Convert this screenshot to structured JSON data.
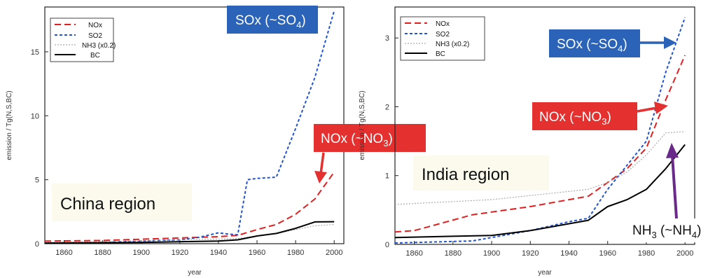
{
  "chart_data": [
    {
      "type": "line",
      "panel": "left",
      "region_label": "China region",
      "xlabel": "year",
      "ylabel": "emission / Tg(N,S,BC)",
      "xlim": [
        1850,
        2005
      ],
      "ylim": [
        0,
        18.5
      ],
      "xticks": [
        1860,
        1880,
        1900,
        1920,
        1940,
        1960,
        1980,
        2000
      ],
      "yticks": [
        0,
        5,
        10,
        15
      ],
      "legend_position": "top-left",
      "series": [
        {
          "name": "NOx",
          "color": "#e02020",
          "dash": "9,5",
          "width": 2,
          "x": [
            1850,
            1880,
            1900,
            1920,
            1940,
            1950,
            1960,
            1970,
            1980,
            1990,
            2000
          ],
          "y": [
            0.2,
            0.25,
            0.35,
            0.45,
            0.55,
            0.65,
            1.1,
            1.5,
            2.3,
            3.5,
            5.6
          ]
        },
        {
          "name": "SO2",
          "color": "#2255cc",
          "dash": "4,3",
          "width": 2,
          "x": [
            1850,
            1880,
            1900,
            1920,
            1930,
            1940,
            1945,
            1950,
            1955,
            1960,
            1970,
            1980,
            1990,
            2000
          ],
          "y": [
            0.05,
            0.1,
            0.2,
            0.3,
            0.5,
            0.85,
            0.75,
            0.7,
            5.0,
            5.1,
            5.2,
            9.0,
            13.0,
            18.2
          ]
        },
        {
          "name": "NH3 (x0.2)",
          "color": "#aaaaaa",
          "dash": "2,2",
          "width": 1.2,
          "x": [
            1850,
            1900,
            1950,
            1960,
            1970,
            1980,
            1990,
            2000
          ],
          "y": [
            0.1,
            0.2,
            0.4,
            0.6,
            0.8,
            1.1,
            1.4,
            1.5
          ]
        },
        {
          "name": "BC",
          "color": "#000000",
          "dash": "",
          "width": 2,
          "x": [
            1850,
            1900,
            1940,
            1950,
            1960,
            1970,
            1980,
            1990,
            2000
          ],
          "y": [
            0.05,
            0.1,
            0.2,
            0.3,
            0.6,
            0.8,
            1.2,
            1.7,
            1.72
          ]
        }
      ],
      "annotations": [
        {
          "label": "SOx (~SO",
          "sub": "4",
          "close": ")",
          "box_color": "#2a63b8"
        },
        {
          "label": "NOx (~NO",
          "sub": "3",
          "close": ")",
          "box_color": "#e53030"
        }
      ]
    },
    {
      "type": "line",
      "panel": "right",
      "region_label": "India region",
      "xlabel": "year",
      "ylabel": "emission / Tg(N,S,BC)",
      "xlim": [
        1850,
        2005
      ],
      "ylim": [
        0,
        3.45
      ],
      "xticks": [
        1860,
        1880,
        1900,
        1920,
        1940,
        1960,
        1980,
        2000
      ],
      "yticks": [
        0,
        1,
        2,
        3
      ],
      "legend_position": "top-left",
      "series": [
        {
          "name": "NOx",
          "color": "#e02020",
          "dash": "9,5",
          "width": 2,
          "x": [
            1850,
            1860,
            1890,
            1920,
            1950,
            1960,
            1970,
            1980,
            1990,
            2000
          ],
          "y": [
            0.18,
            0.2,
            0.43,
            0.55,
            0.7,
            0.9,
            1.1,
            1.4,
            2.1,
            2.75
          ]
        },
        {
          "name": "SO2",
          "color": "#2255cc",
          "dash": "4,3",
          "width": 2,
          "x": [
            1850,
            1890,
            1900,
            1920,
            1940,
            1950,
            1960,
            1970,
            1980,
            1990,
            2000
          ],
          "y": [
            0.02,
            0.05,
            0.1,
            0.2,
            0.33,
            0.38,
            0.8,
            1.15,
            1.5,
            2.5,
            3.3
          ]
        },
        {
          "name": "NH3 (x0.2)",
          "color": "#aaaaaa",
          "dash": "2,2",
          "width": 1.2,
          "x": [
            1850,
            1900,
            1950,
            1960,
            1970,
            1980,
            1990,
            2000
          ],
          "y": [
            0.58,
            0.65,
            0.8,
            0.9,
            1.05,
            1.3,
            1.62,
            1.64
          ]
        },
        {
          "name": "BC",
          "color": "#000000",
          "dash": "",
          "width": 2,
          "x": [
            1850,
            1900,
            1920,
            1940,
            1950,
            1960,
            1970,
            1980,
            1990,
            2000
          ],
          "y": [
            0.1,
            0.13,
            0.2,
            0.3,
            0.35,
            0.55,
            0.65,
            0.8,
            1.1,
            1.45
          ]
        }
      ],
      "annotations": [
        {
          "label": "SOx (~SO",
          "sub": "4",
          "close": ")",
          "box_color": "#2a63b8"
        },
        {
          "label": "NOx (~NO",
          "sub": "3",
          "close": ")",
          "box_color": "#e53030"
        },
        {
          "label": "NH",
          "sub": "3",
          "close": " (~NH",
          "sub2": "4",
          "close2": ")",
          "box_color": "#ffffff"
        }
      ]
    }
  ]
}
